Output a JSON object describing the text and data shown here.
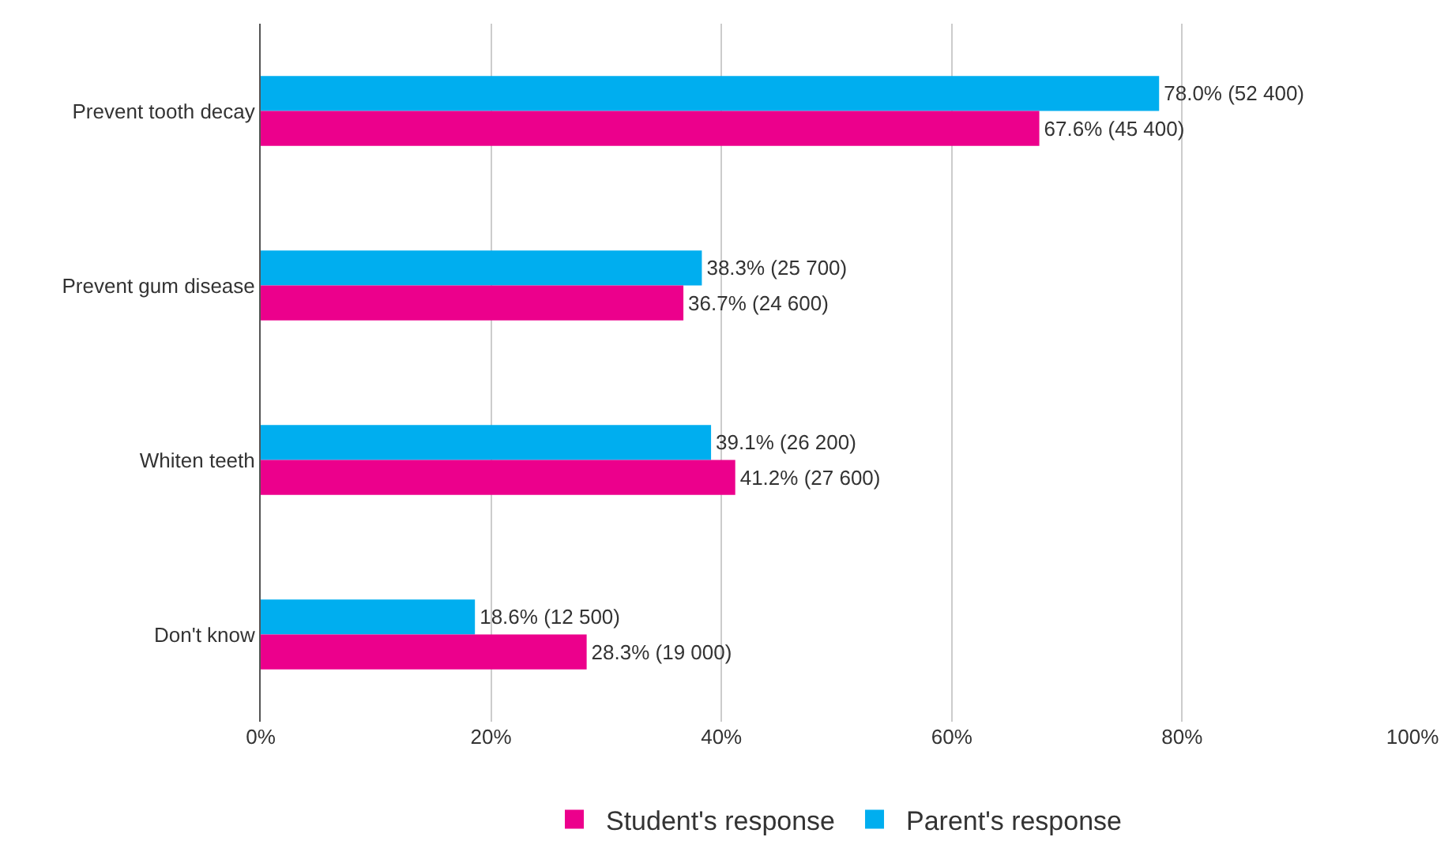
{
  "chart_data": {
    "type": "bar",
    "orientation": "horizontal",
    "categories": [
      "Prevent tooth decay",
      "Prevent gum disease",
      "Whiten teeth",
      "Don't know"
    ],
    "series": [
      {
        "name": "Parent's response",
        "color": "#00aeef",
        "values": [
          78.0,
          38.3,
          39.1,
          18.6
        ],
        "value_labels": [
          "78.0% (52 400)",
          "38.3% (25 700)",
          "39.1% (26 200)",
          "18.6% (12 500)"
        ]
      },
      {
        "name": "Student's response",
        "color": "#ec008c",
        "values": [
          67.6,
          36.7,
          41.2,
          28.3
        ],
        "value_labels": [
          "67.6% (45 400)",
          "36.7% (24 600)",
          "41.2% (27 600)",
          "28.3% (19 000)"
        ]
      }
    ],
    "xlim": [
      0,
      100
    ],
    "xticks": [
      {
        "value": 0,
        "label": "0%"
      },
      {
        "value": 20,
        "label": "20%"
      },
      {
        "value": 40,
        "label": "40%"
      },
      {
        "value": 60,
        "label": "60%"
      },
      {
        "value": 80,
        "label": "80%"
      },
      {
        "value": 100,
        "label": "100%"
      }
    ],
    "grid": "x",
    "legend": "bottom"
  }
}
